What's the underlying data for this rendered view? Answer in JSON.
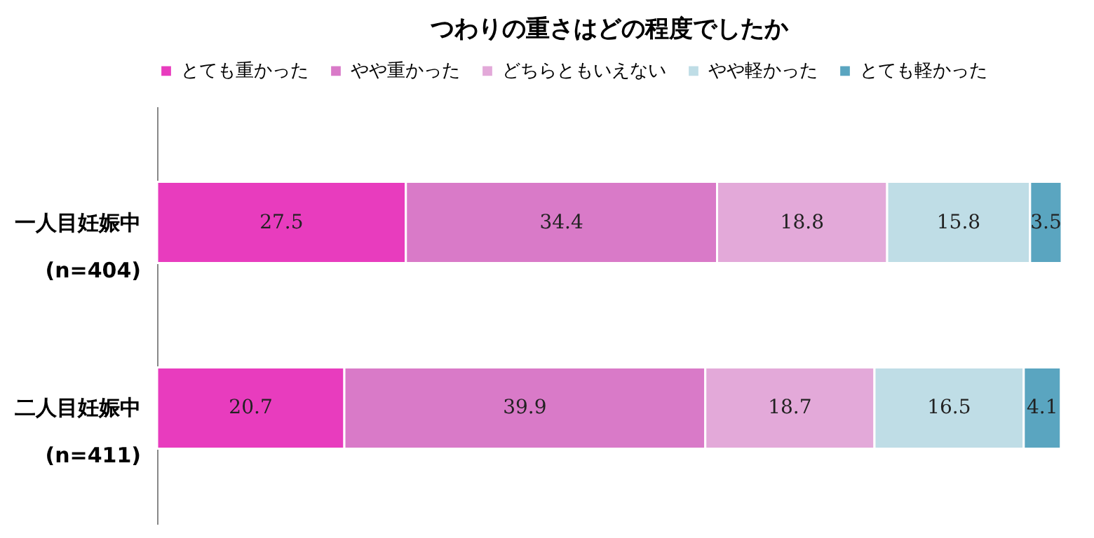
{
  "chart_data": {
    "type": "bar",
    "title": "つわりの重さはどの程度でしたか",
    "orientation": "horizontal",
    "stacked": true,
    "data_labels": true,
    "legend": "top",
    "grid": false,
    "categories": [
      "一人目妊娠中\n(n=404)",
      "二人目妊娠中\n(n=411)"
    ],
    "series": [
      {
        "name": "とても重かった",
        "color": "#e83cbe",
        "values": [
          27.5,
          20.7
        ]
      },
      {
        "name": "やや重かった",
        "color": "#d97ac8",
        "values": [
          34.4,
          39.9
        ]
      },
      {
        "name": "どちらともいえない",
        "color": "#e3a9d9",
        "values": [
          18.8,
          18.7
        ]
      },
      {
        "name": "やや軽かった",
        "color": "#bfdde6",
        "values": [
          15.8,
          16.5
        ]
      },
      {
        "name": "とても軽かった",
        "color": "#5aa5c0",
        "values": [
          3.5,
          4.1
        ]
      }
    ]
  }
}
